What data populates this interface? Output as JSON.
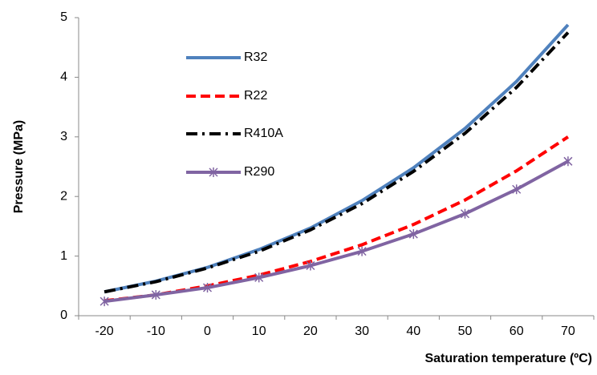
{
  "chart_data": {
    "type": "line",
    "x_label": "Saturation temperature (ºC)",
    "y_label": "Pressure (MPa)",
    "categories": [
      "-20",
      "-10",
      "0",
      "10",
      "20",
      "30",
      "40",
      "50",
      "60",
      "70"
    ],
    "ylim": [
      0,
      5
    ],
    "yticks": [
      0,
      1,
      2,
      3,
      4,
      5
    ],
    "series": [
      {
        "name": "R32",
        "color": "#4f81bd",
        "style": "solid",
        "values": [
          0.4,
          0.58,
          0.81,
          1.11,
          1.47,
          1.93,
          2.48,
          3.14,
          3.93,
          4.88
        ]
      },
      {
        "name": "R22",
        "color": "#ff0000",
        "style": "dashed",
        "values": [
          0.25,
          0.35,
          0.5,
          0.68,
          0.91,
          1.19,
          1.53,
          1.94,
          2.43,
          3.0
        ]
      },
      {
        "name": "R410A",
        "color": "#000000",
        "style": "dashdot",
        "values": [
          0.4,
          0.57,
          0.8,
          1.08,
          1.44,
          1.88,
          2.42,
          3.06,
          3.83,
          4.75
        ]
      },
      {
        "name": "R290",
        "color": "#8064a2",
        "style": "solid-star",
        "values": [
          0.24,
          0.35,
          0.47,
          0.64,
          0.84,
          1.08,
          1.37,
          1.71,
          2.12,
          2.59
        ]
      }
    ]
  }
}
